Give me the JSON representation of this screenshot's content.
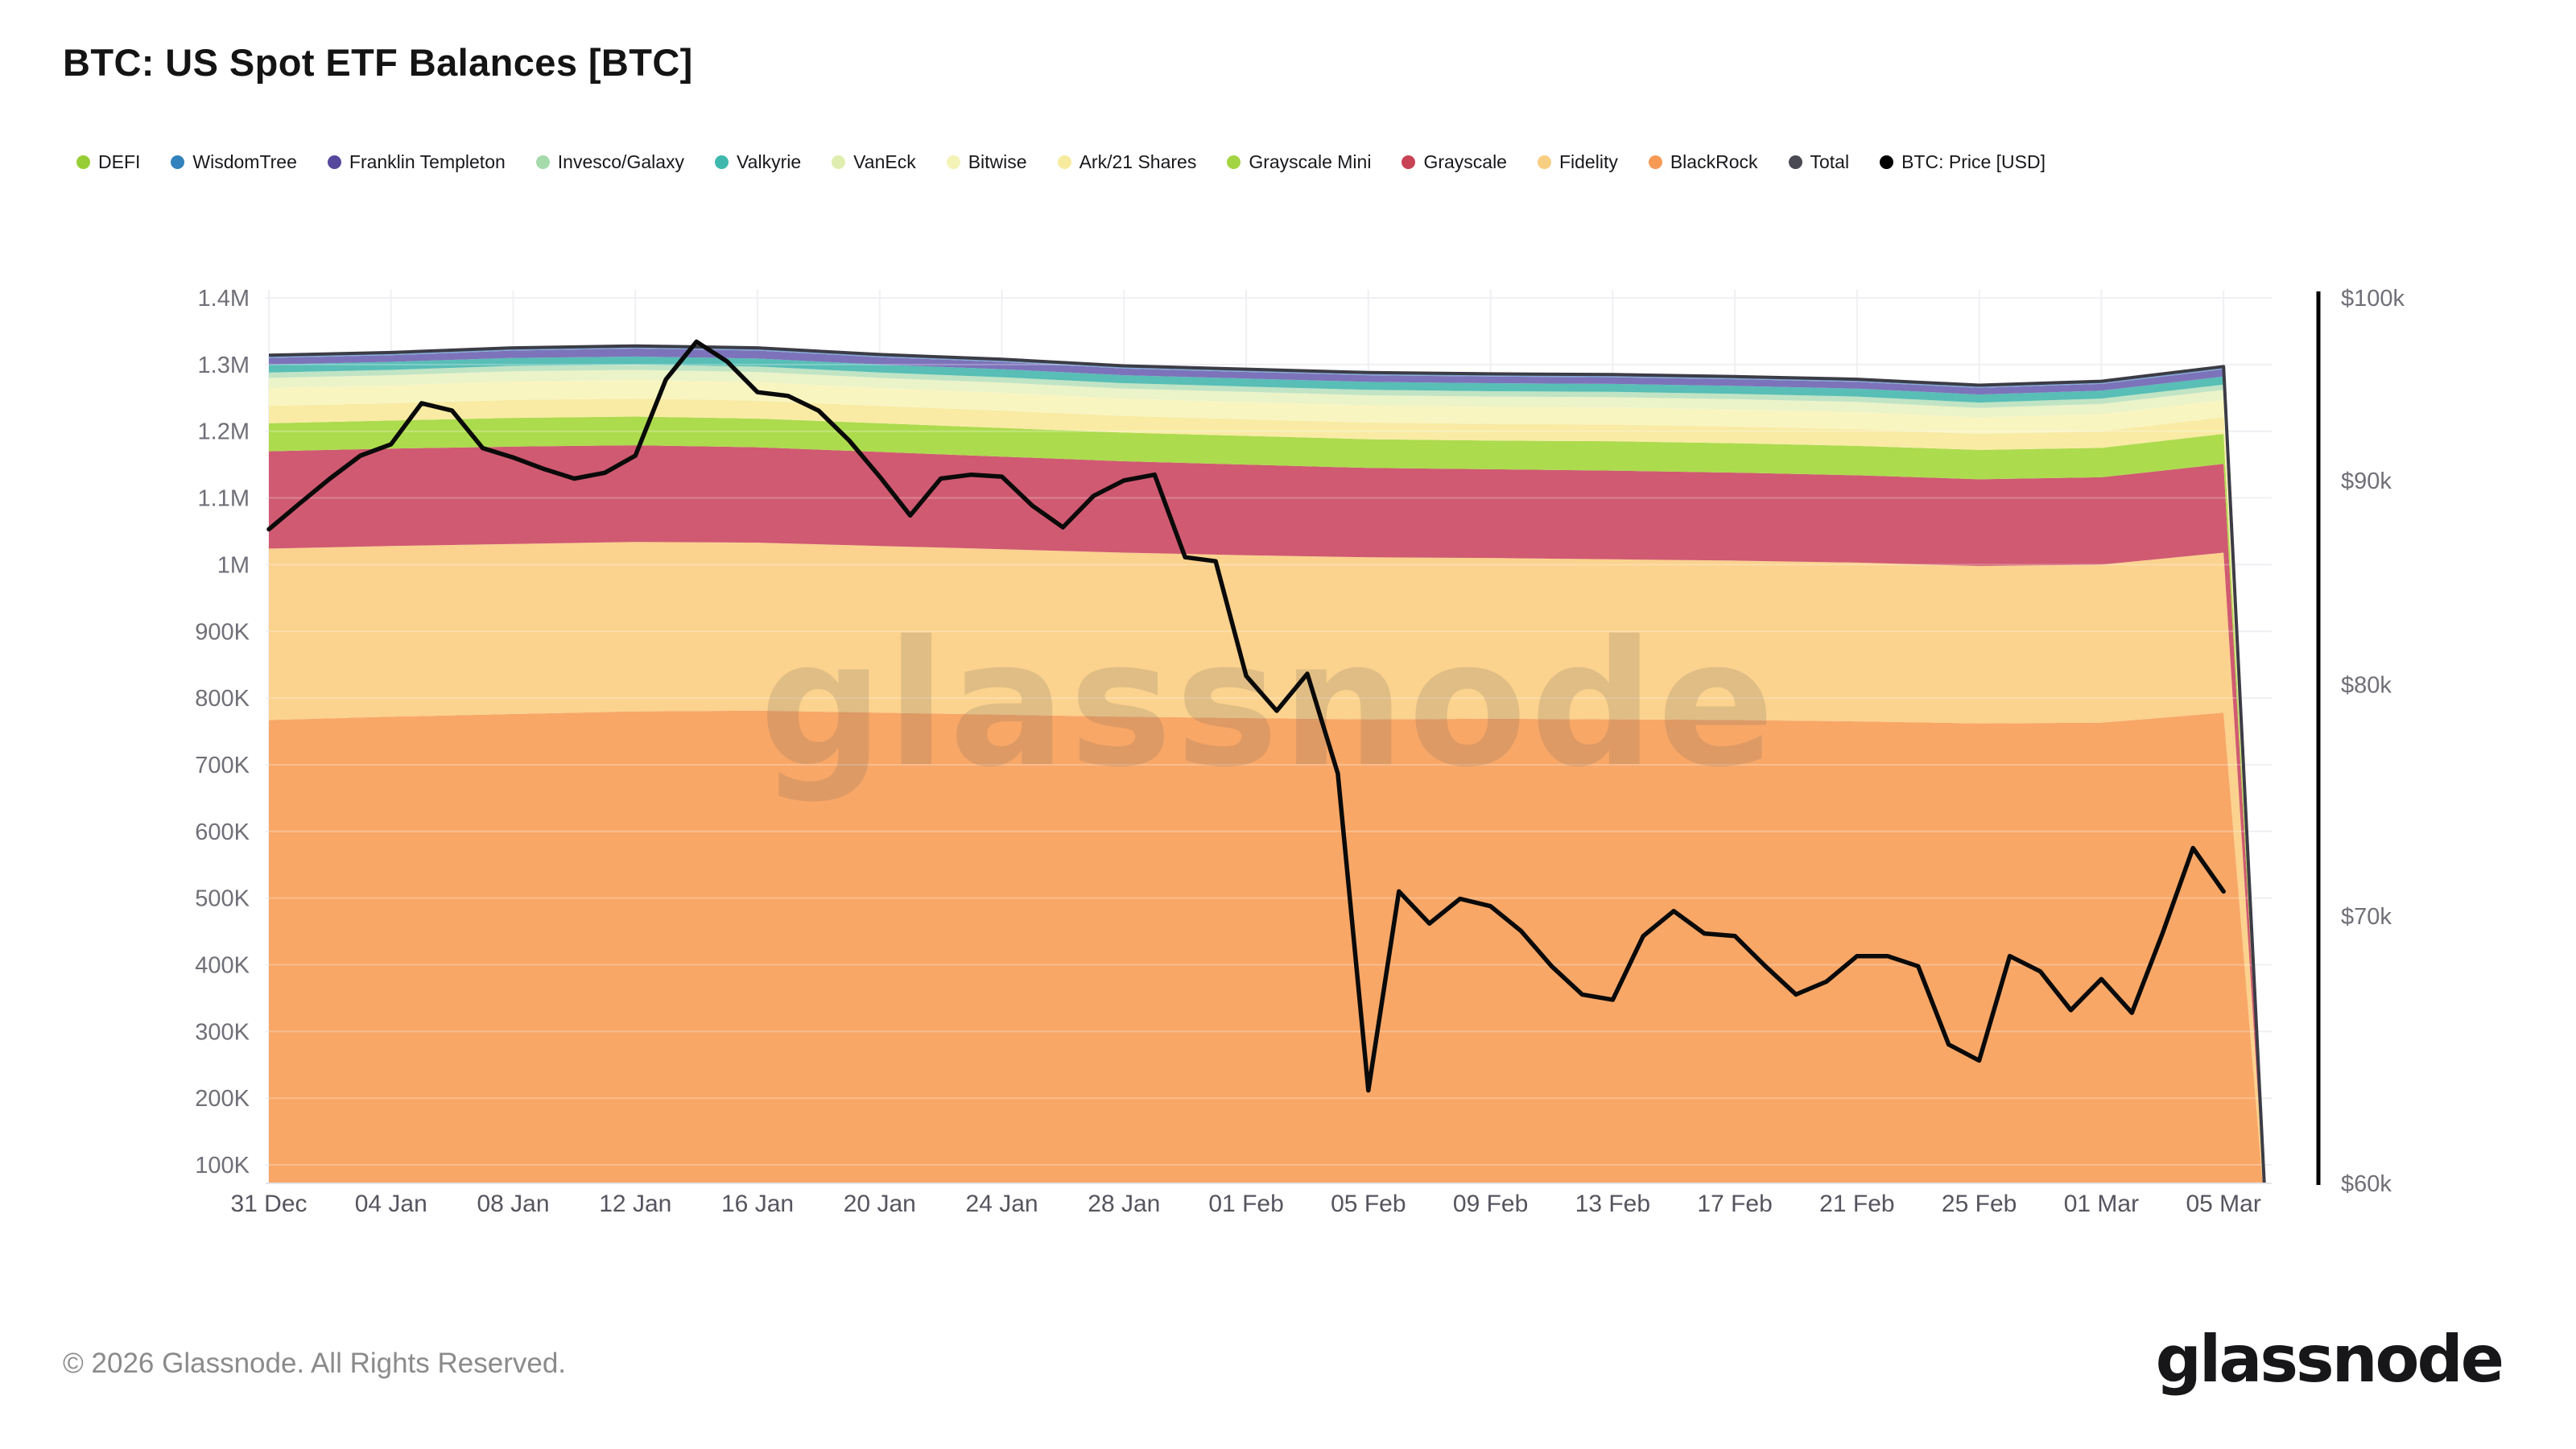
{
  "page": {
    "title": "BTC: US Spot ETF Balances [BTC]"
  },
  "footer": {
    "copyright": "© 2026 Glassnode. All Rights Reserved.",
    "logo_text": "glassnode"
  },
  "watermark_text": "glassnode",
  "legend": {
    "items": [
      {
        "label": "DEFI",
        "color": "#97CE35"
      },
      {
        "label": "WisdomTree",
        "color": "#3182BD"
      },
      {
        "label": "Franklin Templeton",
        "color": "#55489D"
      },
      {
        "label": "Invesco/Galaxy",
        "color": "#A5DAAB"
      },
      {
        "label": "Valkyrie",
        "color": "#3FB8AE"
      },
      {
        "label": "VanEck",
        "color": "#DFEEAF"
      },
      {
        "label": "Bitwise",
        "color": "#F5F2B8"
      },
      {
        "label": "Ark/21 Shares",
        "color": "#F7EB9E"
      },
      {
        "label": "Grayscale Mini",
        "color": "#A3D443"
      },
      {
        "label": "Grayscale",
        "color": "#C94356"
      },
      {
        "label": "Fidelity",
        "color": "#F8CE82"
      },
      {
        "label": "BlackRock",
        "color": "#F79A55"
      },
      {
        "label": "Total",
        "color": "#4A4A55"
      },
      {
        "label": "BTC: Price [USD]",
        "color": "#000000"
      }
    ]
  },
  "chart_data": {
    "type": "area",
    "stacked": true,
    "title": "BTC: US Spot ETF Balances [BTC]",
    "x_tick_labels": [
      "31 Dec",
      "04 Jan",
      "08 Jan",
      "12 Jan",
      "16 Jan",
      "20 Jan",
      "24 Jan",
      "28 Jan",
      "01 Feb",
      "05 Feb",
      "09 Feb",
      "13 Feb",
      "17 Feb",
      "21 Feb",
      "25 Feb",
      "01 Mar",
      "05 Mar"
    ],
    "days_per_tick": 4,
    "left_axis": {
      "tick_labels": [
        "1.4M",
        "1.3M",
        "1.2M",
        "1.1M",
        "1M",
        "900K",
        "800K",
        "700K",
        "600K",
        "500K",
        "400K",
        "300K",
        "200K",
        "100K"
      ],
      "tick_values_k_btc": [
        1400,
        1300,
        1200,
        1100,
        1000,
        900,
        800,
        700,
        600,
        500,
        400,
        300,
        200,
        100
      ],
      "range_btc": [
        100000,
        1400000
      ],
      "scale": "linear",
      "grid": true
    },
    "right_axis": {
      "tick_labels": [
        "$100k",
        "$90k",
        "$80k",
        "$70k",
        "$60k"
      ],
      "tick_values_usd_k": [
        100,
        90,
        80,
        70,
        60
      ],
      "range_usd": [
        60000,
        100000
      ],
      "scale": "log",
      "grid": false
    },
    "control_days": [
      0,
      4,
      8,
      12,
      16,
      20,
      24,
      28,
      32,
      36,
      40,
      44,
      48,
      52,
      56,
      60,
      64,
      65.4
    ],
    "series_note": "stacked bottom-to-top, values in thousand BTC at each control day; final point is the end-of-chart data collapse",
    "series": [
      {
        "name": "BlackRock",
        "fill": "#F8A767",
        "values_k_btc": [
          767,
          772,
          776,
          780,
          781,
          778,
          775,
          772,
          770,
          768,
          769,
          768,
          767,
          765,
          762,
          763,
          778,
          6
        ]
      },
      {
        "name": "Fidelity",
        "fill": "#FBD28E",
        "values_k_btc": [
          257,
          256,
          255,
          254,
          252,
          250,
          248,
          246,
          244,
          243,
          241,
          240,
          239,
          238,
          236,
          237,
          240,
          2
        ]
      },
      {
        "name": "Grayscale",
        "fill": "#D05A71",
        "values_k_btc": [
          146,
          146,
          146,
          145,
          143,
          141,
          139,
          137,
          136,
          134,
          133,
          133,
          132,
          131,
          130,
          131,
          133,
          1
        ]
      },
      {
        "name": "Grayscale Mini",
        "fill": "#ACDB4D",
        "values_k_btc": [
          42,
          42,
          43,
          43,
          43,
          43,
          43,
          43,
          43,
          43,
          43,
          44,
          44,
          44,
          44,
          44,
          45,
          0.4
        ]
      },
      {
        "name": "Ark/21 Shares",
        "fill": "#F9EBA4",
        "values_k_btc": [
          26,
          26,
          27,
          27,
          27,
          26,
          26,
          25,
          25,
          25,
          25,
          25,
          25,
          25,
          24,
          25,
          25,
          0.2
        ]
      },
      {
        "name": "Bitwise",
        "fill": "#F8F5C1",
        "values_k_btc": [
          27,
          27,
          28,
          28,
          28,
          27,
          27,
          26,
          26,
          26,
          26,
          26,
          26,
          26,
          25,
          26,
          26,
          0.2
        ]
      },
      {
        "name": "VanEck",
        "fill": "#EBF3C8",
        "values_k_btc": [
          15,
          15,
          15,
          15,
          15,
          15,
          15,
          15,
          15,
          15,
          15,
          15,
          15,
          15,
          14,
          15,
          15,
          0.1
        ]
      },
      {
        "name": "Invesco/Galaxy",
        "fill": "#C0E4C4",
        "values_k_btc": [
          8,
          8,
          8,
          8,
          8,
          8,
          8,
          8,
          8,
          8,
          8,
          8,
          8,
          8,
          8,
          8,
          8,
          0.1
        ]
      },
      {
        "name": "Valkyrie",
        "fill": "#58BEB6",
        "values_k_btc": [
          12,
          12,
          12,
          12,
          12,
          12,
          12,
          12,
          12,
          12,
          12,
          12,
          12,
          12,
          12,
          12,
          12,
          0.1
        ]
      },
      {
        "name": "Franklin Templeton",
        "fill": "#7C73BA",
        "values_k_btc": [
          10,
          10,
          11,
          12,
          12,
          11,
          11,
          10,
          10,
          10,
          10,
          10,
          10,
          10,
          10,
          10,
          11,
          0.1
        ]
      },
      {
        "name": "WisdomTree",
        "fill": "#7FA9D5",
        "values_k_btc": [
          3,
          3,
          3,
          3,
          3,
          3,
          3,
          3,
          3,
          3,
          3,
          3,
          3,
          3,
          3,
          3,
          3,
          0
        ]
      },
      {
        "name": "DEFI",
        "fill": "#B8DC6A",
        "values_k_btc": [
          1,
          1,
          1,
          1,
          1,
          1,
          1,
          1,
          1,
          1,
          1,
          1,
          1,
          1,
          1,
          1,
          1,
          0
        ]
      }
    ],
    "total_line": {
      "name": "Total",
      "color": "#3C3C46",
      "note": "sum of all stacked series, drawn along stack top"
    },
    "price_line": {
      "name": "BTC: Price [USD]",
      "color": "#0a0a0a",
      "x_unit": "daily from 31 Dec to 05 Mar",
      "daily_values_usd_k": [
        87.5,
        88.8,
        90.1,
        91.3,
        91.9,
        94.1,
        93.7,
        91.7,
        91.2,
        90.6,
        90.1,
        90.4,
        91.3,
        95.4,
        97.5,
        96.4,
        94.7,
        94.5,
        93.7,
        92.1,
        90.2,
        88.2,
        90.1,
        90.3,
        90.2,
        88.7,
        87.6,
        89.2,
        90.0,
        90.3,
        86.1,
        85.9,
        80.4,
        78.8,
        80.5,
        76.0,
        63.3,
        71.0,
        69.7,
        70.7,
        70.4,
        69.4,
        68.0,
        66.9,
        66.7,
        69.2,
        70.2,
        69.3,
        69.2,
        68.0,
        66.9,
        67.4,
        68.4,
        68.4,
        68.0,
        65.0,
        64.4,
        68.4,
        67.8,
        66.3,
        67.5,
        66.2,
        69.3,
        72.8,
        71.0
      ]
    }
  }
}
